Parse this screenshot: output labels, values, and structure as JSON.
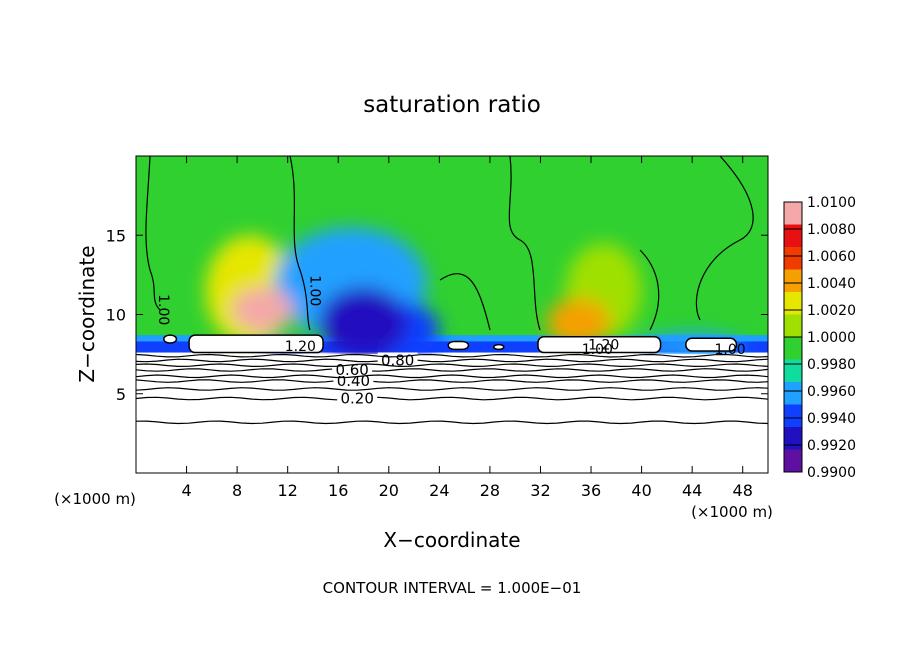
{
  "chart_data": {
    "type": "heatmap",
    "title": "saturation ratio",
    "xlabel": "X−coordinate",
    "ylabel": "Z−coordinate",
    "x_unit_left": "(×1000 m)",
    "x_unit_right": "(×1000 m)",
    "footer": "CONTOUR INTERVAL = 1.000E−01",
    "xlim": [
      0,
      50
    ],
    "ylim": [
      0,
      20
    ],
    "xticks": [
      4,
      8,
      12,
      16,
      20,
      24,
      28,
      32,
      36,
      40,
      44,
      48
    ],
    "yticks": [
      5,
      10,
      15
    ],
    "colorbar": {
      "min": 0.99,
      "max": 1.01,
      "labels": [
        "1.0100",
        "1.0080",
        "1.0060",
        "1.0040",
        "1.0020",
        "1.0000",
        "0.9980",
        "0.9960",
        "0.9940",
        "0.9920",
        "0.9900"
      ],
      "colors": [
        "#f4a8a8",
        "#e81010",
        "#f03c00",
        "#f5a000",
        "#e6e600",
        "#a0e000",
        "#30d030",
        "#10dca0",
        "#20a0ff",
        "#1040ff",
        "#2010c0",
        "#6010a0"
      ]
    },
    "background_value": 0.999,
    "blobs": [
      {
        "x": 10,
        "z": 10.3,
        "rx": 2.4,
        "rz": 1.4,
        "value": 1.0085
      },
      {
        "x": 9,
        "z": 11.5,
        "rx": 3.5,
        "rz": 3.5,
        "value": 1.003
      },
      {
        "x": 35,
        "z": 9.5,
        "rx": 2.5,
        "rz": 1.5,
        "value": 1.004
      },
      {
        "x": 37,
        "z": 11.5,
        "rx": 3,
        "rz": 3,
        "value": 1.0015
      },
      {
        "x": 18,
        "z": 9.5,
        "rx": 3.5,
        "rz": 2.2,
        "value": 0.9925
      },
      {
        "x": 17,
        "z": 12,
        "rx": 6,
        "rz": 3.5,
        "value": 0.996
      },
      {
        "x": 21,
        "z": 9,
        "rx": 3,
        "rz": 1.8,
        "value": 0.9935
      },
      {
        "x": 12,
        "z": 7.8,
        "rx": 2,
        "rz": 0.4,
        "value": 0.9945
      },
      {
        "x": 44,
        "z": 8,
        "rx": 4,
        "rz": 0.8,
        "value": 0.9965
      }
    ],
    "cloud_regions": [
      {
        "x0": 4.2,
        "x1": 14.8,
        "z0": 7.6,
        "z1": 8.7
      },
      {
        "x0": 31.8,
        "x1": 41.5,
        "z0": 7.6,
        "z1": 8.6
      },
      {
        "x0": 43.5,
        "x1": 47.5,
        "z0": 7.7,
        "z1": 8.5
      },
      {
        "x0": 24.7,
        "x1": 26.3,
        "z0": 7.8,
        "z1": 8.3
      },
      {
        "x0": 28.3,
        "x1": 29.1,
        "z0": 7.8,
        "z1": 8.1
      },
      {
        "x0": 2.2,
        "x1": 3.2,
        "z0": 8.2,
        "z1": 8.7
      }
    ],
    "contour_lines": [
      {
        "label": "0.20",
        "z": 4.7,
        "label_x": 17.5
      },
      {
        "label": "",
        "z": 3.2,
        "label_x": null
      },
      {
        "label": "0.40",
        "z": 5.8,
        "label_x": 17.2
      },
      {
        "label": "0.60",
        "z": 6.5,
        "label_x": 17.1
      },
      {
        "label": "0.80",
        "z": 7.1,
        "label_x": 20.7
      },
      {
        "label": "",
        "z": 5.3,
        "label_x": null
      },
      {
        "label": "",
        "z": 6.1,
        "label_x": null
      },
      {
        "label": "",
        "z": 6.8,
        "label_x": null
      },
      {
        "label": "",
        "z": 7.4,
        "label_x": null
      }
    ],
    "inline_labels": [
      {
        "text": "1.20",
        "x": 13,
        "z": 7.7
      },
      {
        "text": "1.20",
        "x": 37,
        "z": 7.8
      },
      {
        "text": "1.00",
        "x": 36.5,
        "z": 7.5
      },
      {
        "text": "1.00",
        "x": 47,
        "z": 7.5
      },
      {
        "text": "1.00",
        "x": 13.8,
        "z": 11.5,
        "rotate": 90
      },
      {
        "text": "1.00",
        "x": 1.8,
        "z": 10.3,
        "rotate": 90
      }
    ]
  }
}
